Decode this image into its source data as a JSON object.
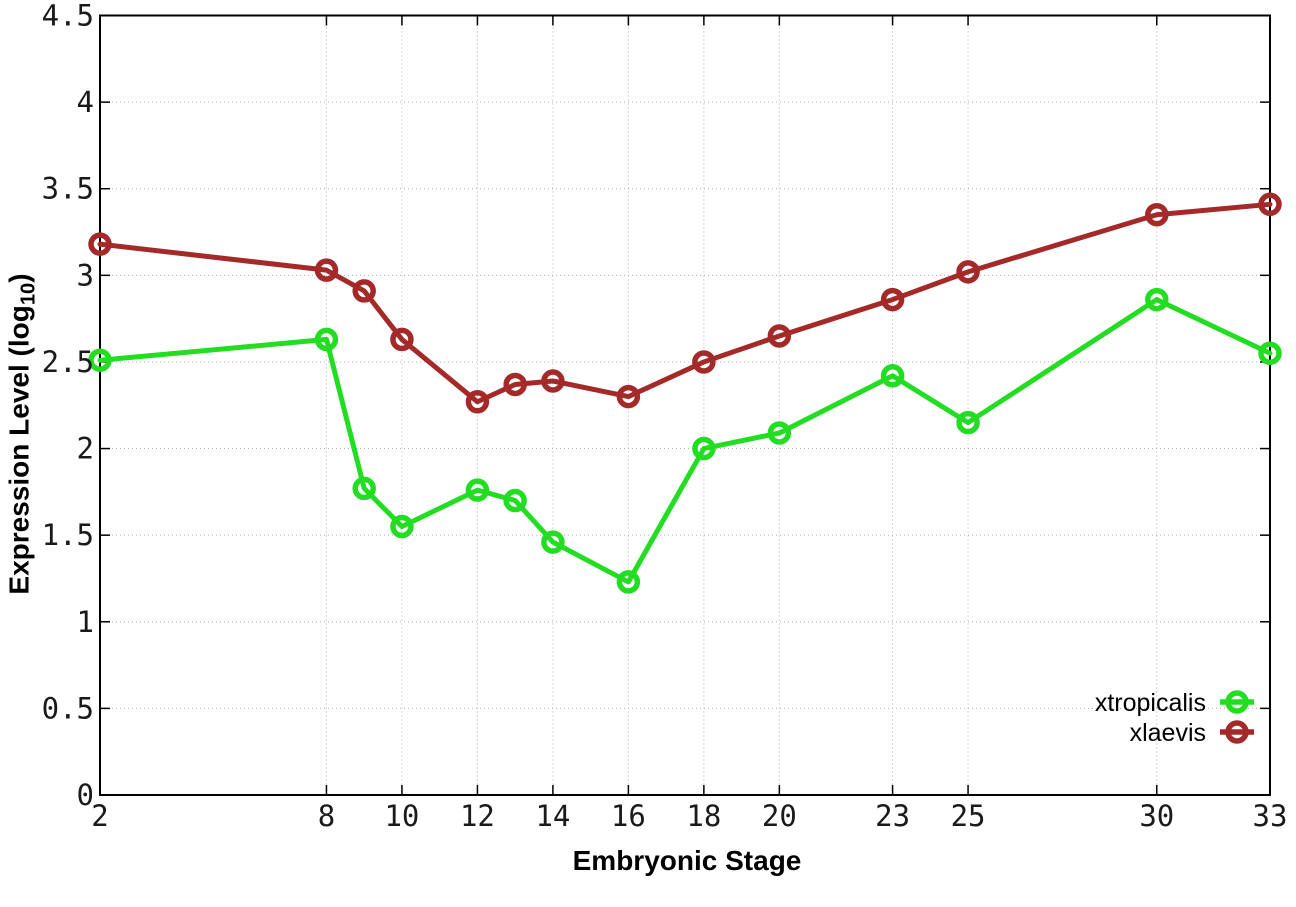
{
  "chart_data": {
    "type": "line",
    "title": "",
    "xlabel": "Embryonic Stage",
    "ylabel": "Expression Level (log10)",
    "ylabel_parts": {
      "prefix": "Expression Level (log",
      "subscript": "10",
      "suffix": ")"
    },
    "x": [
      2,
      8,
      9,
      10,
      12,
      13,
      14,
      16,
      18,
      20,
      23,
      25,
      30,
      33
    ],
    "series": [
      {
        "name": "xtropicalis",
        "color": "#22dd22",
        "values": [
          2.51,
          2.63,
          1.77,
          1.55,
          1.76,
          1.7,
          1.46,
          1.23,
          2.0,
          2.09,
          2.42,
          2.15,
          2.86,
          2.55
        ]
      },
      {
        "name": "xlaevis",
        "color": "#a42a2a",
        "values": [
          3.18,
          3.03,
          2.91,
          2.63,
          2.27,
          2.37,
          2.39,
          2.3,
          2.5,
          2.65,
          2.86,
          3.02,
          3.35,
          3.41
        ]
      }
    ],
    "xticks": [
      2,
      8,
      10,
      12,
      14,
      16,
      18,
      20,
      23,
      25,
      30,
      33
    ],
    "yticks": [
      0,
      0.5,
      1,
      1.5,
      2,
      2.5,
      3,
      3.5,
      4,
      4.5
    ],
    "xlim": [
      2,
      33
    ],
    "ylim": [
      0,
      4.5
    ],
    "grid": true,
    "legend_position": "bottom-right",
    "marker": "open-circle"
  },
  "style": {
    "grid_color": "#b0b0b0",
    "axis_color": "#000000",
    "tick_label_color": "#1a1a1a",
    "background": "#ffffff"
  }
}
